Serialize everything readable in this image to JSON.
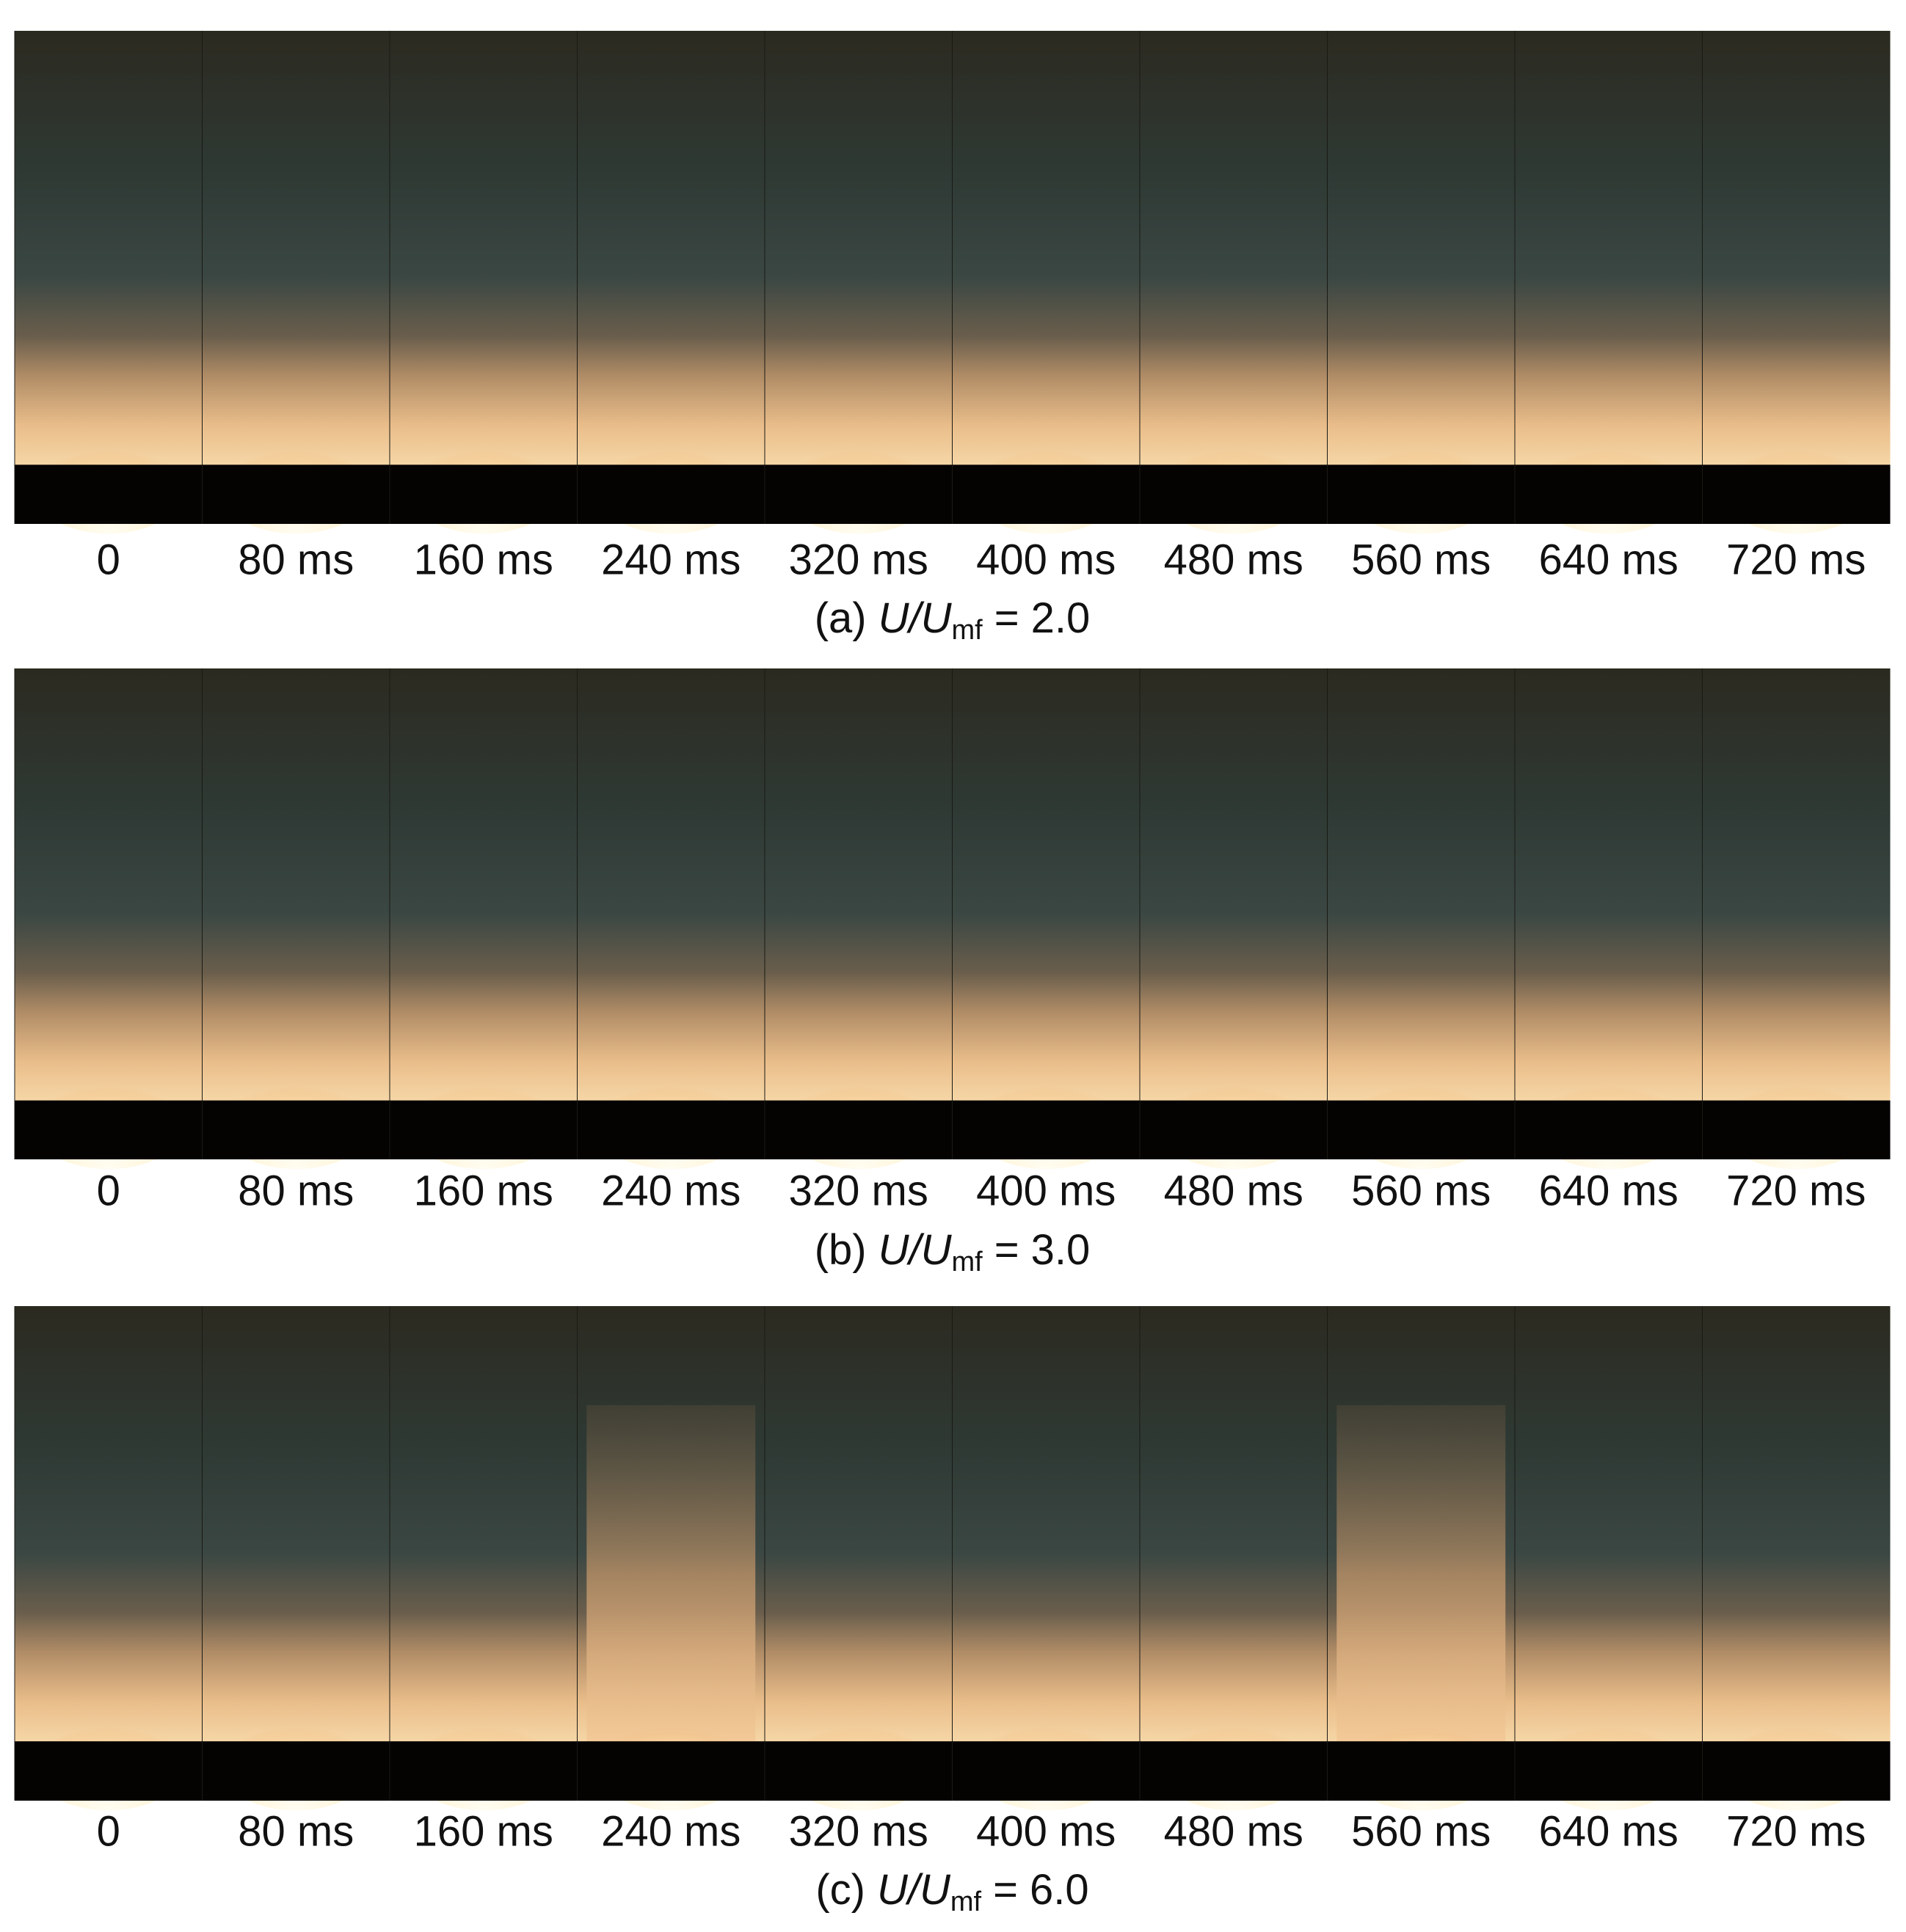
{
  "panels": [
    {
      "frames": [
        "0",
        "80 ms",
        "160 ms",
        "240 ms",
        "320 ms",
        "400 ms",
        "480 ms",
        "560 ms",
        "640 ms",
        "720 ms"
      ],
      "caption": {
        "prefix": "(a)",
        "symbol": "U/U",
        "subscript": "mf",
        "value": "= 2.0"
      }
    },
    {
      "frames": [
        "0",
        "80 ms",
        "160 ms",
        "240 ms",
        "320 ms",
        "400 ms",
        "480 ms",
        "560 ms",
        "640 ms",
        "720 ms"
      ],
      "caption": {
        "prefix": "(b)",
        "symbol": "U/U",
        "subscript": "mf",
        "value": "= 3.0"
      }
    },
    {
      "frames": [
        "0",
        "80 ms",
        "160 ms",
        "240 ms",
        "320 ms",
        "400 ms",
        "480 ms",
        "560 ms",
        "640 ms",
        "720 ms"
      ],
      "caption": {
        "prefix": "(c)",
        "symbol": "U/U",
        "subscript": "mf",
        "value": "= 6.0"
      }
    }
  ]
}
